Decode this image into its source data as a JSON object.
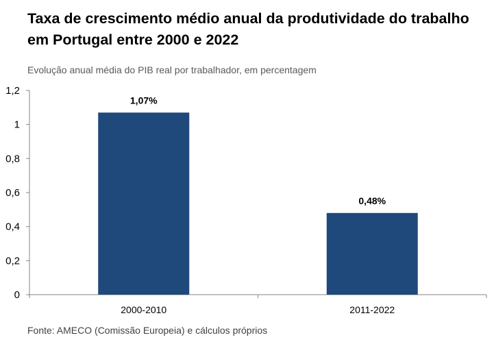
{
  "chart_data": {
    "type": "bar",
    "title": "Taxa de crescimento médio anual da produtividade do trabalho em Portugal entre 2000 e 2022",
    "subtitle": "Evolução anual média do PIB real por trabalhador, em percentagem",
    "categories": [
      "2000-2010",
      "2011-2022"
    ],
    "values": [
      1.07,
      0.48
    ],
    "data_labels": [
      "1,07%",
      "0,48%"
    ],
    "ylim": [
      0,
      1.2
    ],
    "yticks": [
      0,
      0.2,
      0.4,
      0.6,
      0.8,
      1,
      1.2
    ],
    "ytick_labels": [
      "0",
      "0,2",
      "0,4",
      "0,6",
      "0,8",
      "1",
      "1,2"
    ],
    "xlabel": "",
    "ylabel": "",
    "grid": false,
    "bar_color": "#1F497A",
    "source": "Fonte: AMECO (Comissão Europeia) e cálculos próprios"
  }
}
